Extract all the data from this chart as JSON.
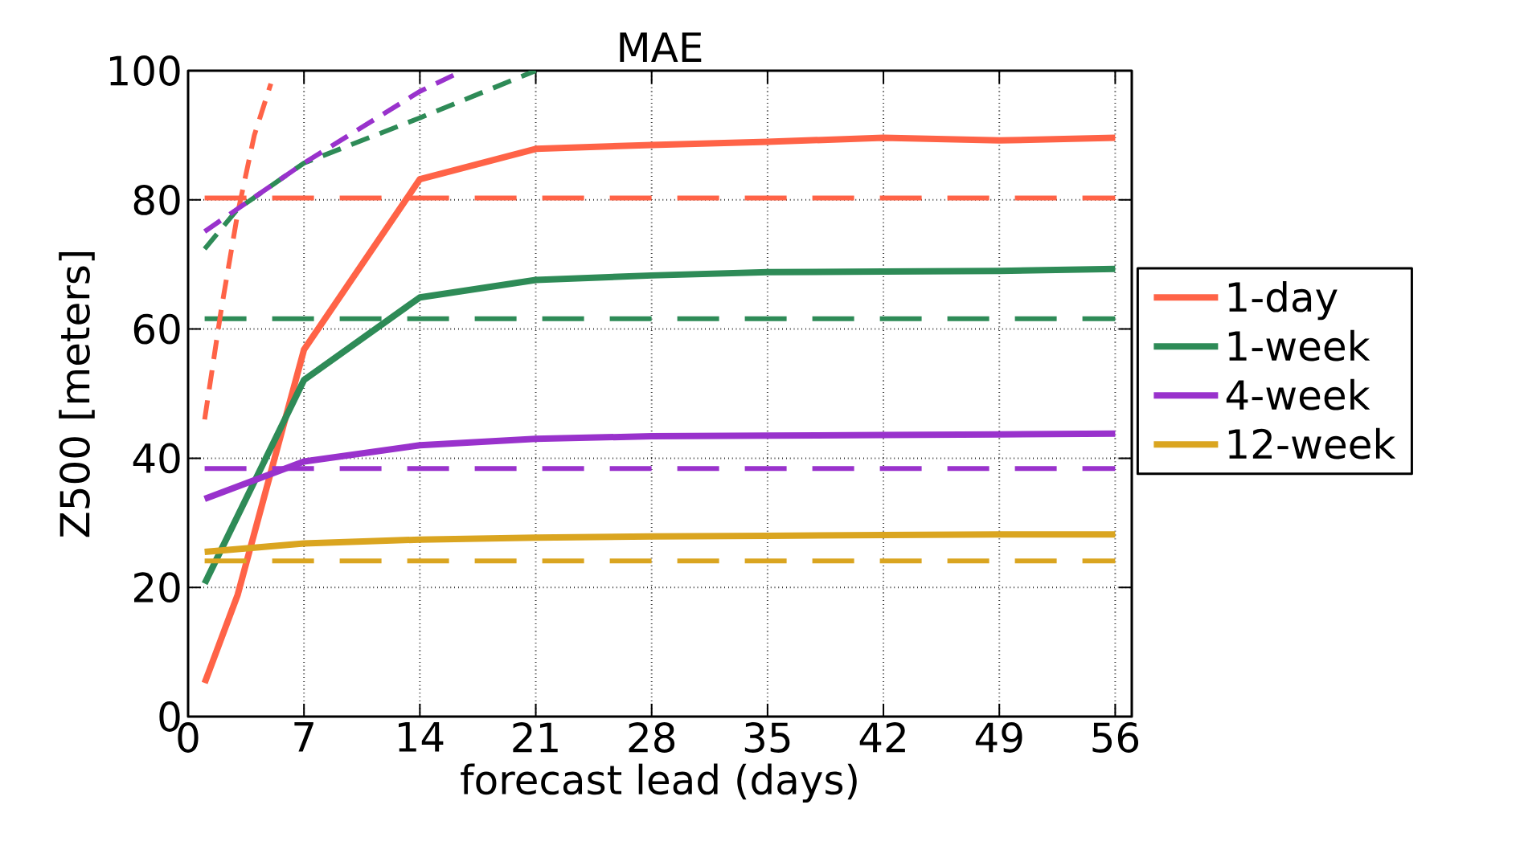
{
  "chart_data": {
    "type": "line",
    "title": "MAE",
    "xlabel": "forecast lead (days)",
    "ylabel": "Z500  [meters]",
    "xlim": [
      0,
      57
    ],
    "ylim": [
      0,
      100
    ],
    "xticks": [
      0,
      7,
      14,
      21,
      28,
      35,
      42,
      49,
      56
    ],
    "yticks": [
      0,
      20,
      40,
      60,
      80,
      100
    ],
    "grid": true,
    "legend": "right",
    "line_style": "solid",
    "marker": "none",
    "series": [
      {
        "name": "1-day",
        "color": "#ff6347",
        "x": [
          1,
          3,
          7,
          14,
          21,
          28,
          35,
          42,
          49,
          56
        ],
        "values": [
          5.2,
          18.9,
          56.8,
          83.2,
          87.9,
          88.5,
          89,
          89.6,
          89.2,
          89.6
        ]
      },
      {
        "name": "1-week",
        "color": "#2e8b57",
        "x": [
          1,
          7,
          14,
          21,
          28,
          35,
          42,
          49,
          56
        ],
        "values": [
          20.6,
          52.1,
          64.9,
          67.6,
          68.3,
          68.8,
          68.9,
          69,
          69.3
        ]
      },
      {
        "name": "4-week",
        "color": "#9932cc",
        "x": [
          1,
          7,
          14,
          21,
          28,
          35,
          42,
          49,
          56
        ],
        "values": [
          33.7,
          39.5,
          42,
          43,
          43.4,
          43.5,
          43.6,
          43.7,
          43.8
        ]
      },
      {
        "name": "12-week",
        "color": "#daa520",
        "x": [
          1,
          7,
          14,
          21,
          28,
          35,
          42,
          49,
          56
        ],
        "values": [
          25.5,
          26.8,
          27.4,
          27.7,
          27.9,
          28,
          28.1,
          28.2,
          28.2
        ]
      },
      {
        "color": "#ff6347",
        "line_style": "dashed",
        "x": [
          1,
          56
        ],
        "values": [
          80.3,
          80.3
        ]
      },
      {
        "color": "#2e8b57",
        "line_style": "dashed",
        "x": [
          1,
          56
        ],
        "values": [
          61.6,
          61.6
        ]
      },
      {
        "color": "#9932cc",
        "line_style": "dashed",
        "x": [
          1,
          56
        ],
        "values": [
          38.4,
          38.4
        ]
      },
      {
        "color": "#daa520",
        "line_style": "dashed",
        "x": [
          1,
          56
        ],
        "values": [
          24.1,
          24.1
        ]
      },
      {
        "color": "#ff6347",
        "line_style": "dotted",
        "x": [
          1,
          2,
          3,
          4,
          5
        ],
        "values": [
          46,
          63,
          78,
          90,
          98
        ]
      },
      {
        "color": "#2e8b57",
        "line_style": "dotted",
        "x": [
          1,
          3,
          7,
          14,
          21
        ],
        "values": [
          72.4,
          78.6,
          85.7,
          92.7,
          100
        ]
      },
      {
        "color": "#9932cc",
        "line_style": "dotted",
        "x": [
          1,
          7,
          14,
          16.6
        ],
        "values": [
          75.1,
          85.7,
          96.8,
          100
        ]
      }
    ]
  }
}
